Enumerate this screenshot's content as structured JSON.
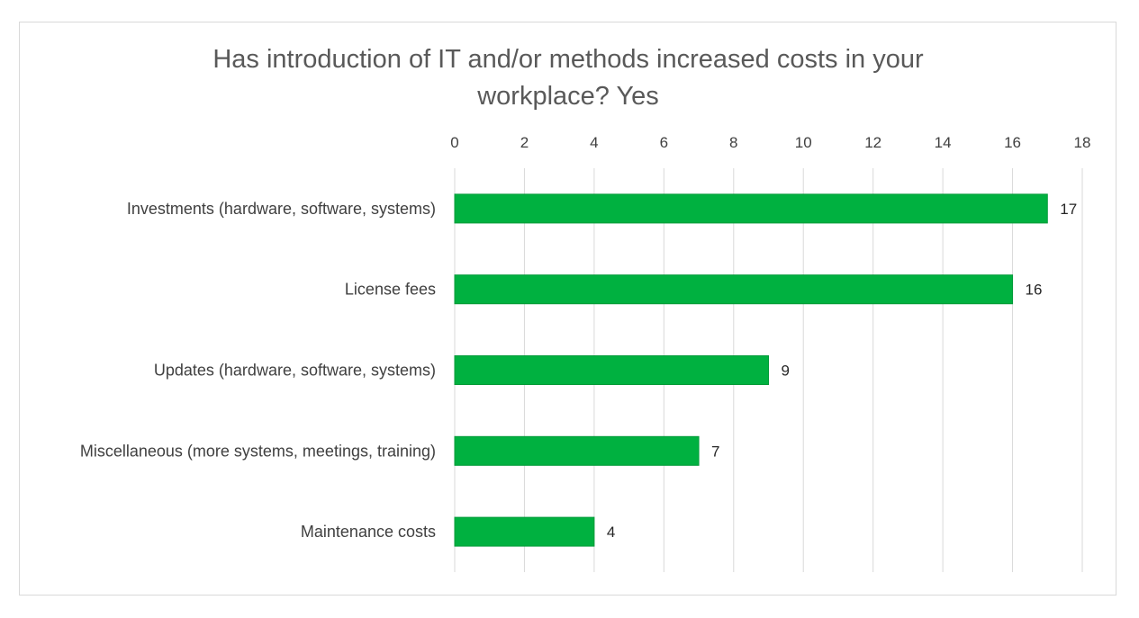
{
  "chart_data": {
    "type": "bar",
    "orientation": "horizontal",
    "title_lines": [
      "Has introduction of IT and/or methods increased costs in your",
      "workplace? Yes"
    ],
    "categories": [
      "Investments (hardware, software, systems)",
      "License fees",
      "Updates (hardware, software, systems)",
      "Miscellaneous (more systems, meetings, training)",
      "Maintenance costs"
    ],
    "values": [
      17,
      16,
      9,
      7,
      4
    ],
    "x_ticks": [
      "0",
      "2",
      "4",
      "6",
      "8",
      "10",
      "12",
      "14",
      "16",
      "18"
    ],
    "xlim": [
      0,
      18
    ],
    "xlabel": "",
    "ylabel": "",
    "axis_position": "top",
    "gridlines": true,
    "legend": "none",
    "data_labels": [
      "17",
      "16",
      "9",
      "7",
      "4"
    ],
    "colors": {
      "bar": "#00b140",
      "grid": "#d9d9d9",
      "title": "#595959",
      "text": "#404040"
    }
  }
}
